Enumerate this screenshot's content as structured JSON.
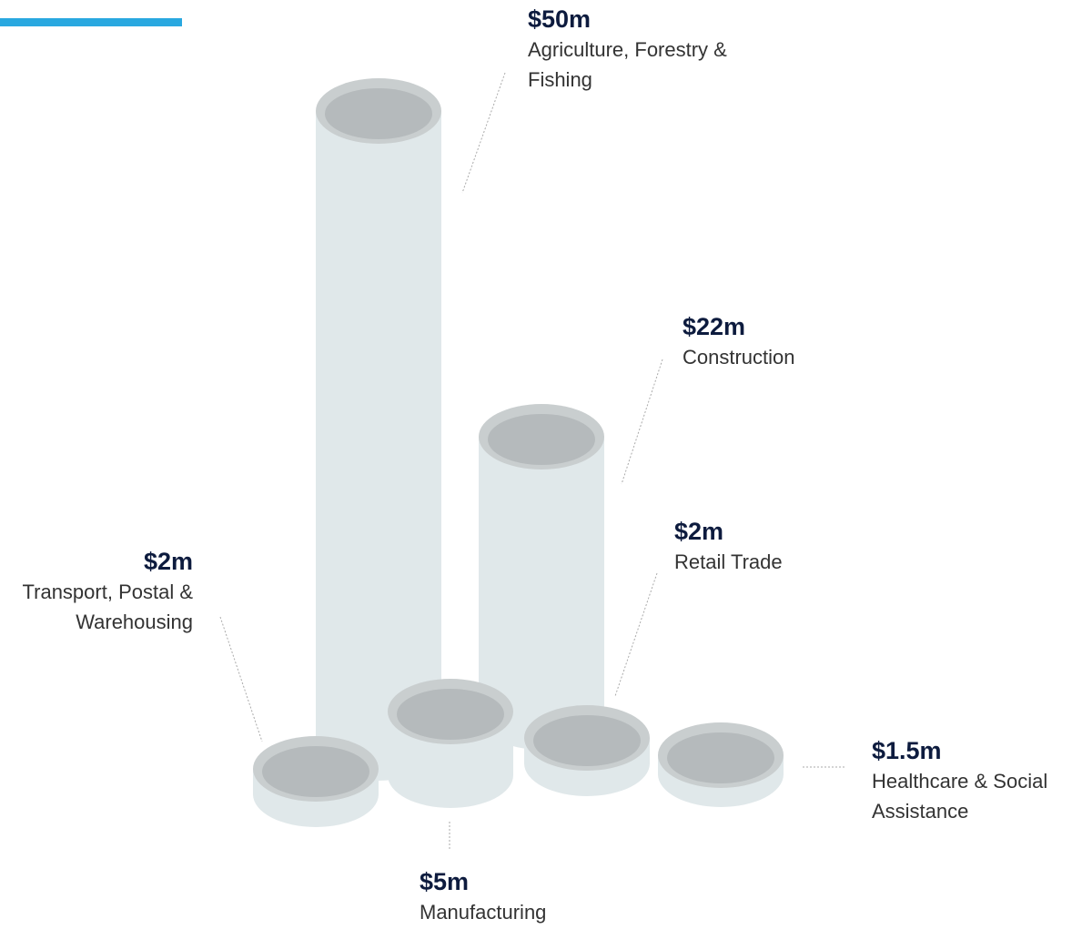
{
  "chart_data": {
    "type": "cylinder",
    "categories": [
      "Agriculture, Forestry & Fishing",
      "Construction",
      "Transport, Postal & Warehousing",
      "Manufacturing",
      "Retail Trade",
      "Healthcare & Social Assistance"
    ],
    "values": [
      50,
      22,
      2,
      5,
      2,
      1.5
    ],
    "value_labels": [
      "$50m",
      "$22m",
      "$2m",
      "$5m",
      "$2m",
      "$1.5m"
    ],
    "color": "#e0e8ea"
  }
}
